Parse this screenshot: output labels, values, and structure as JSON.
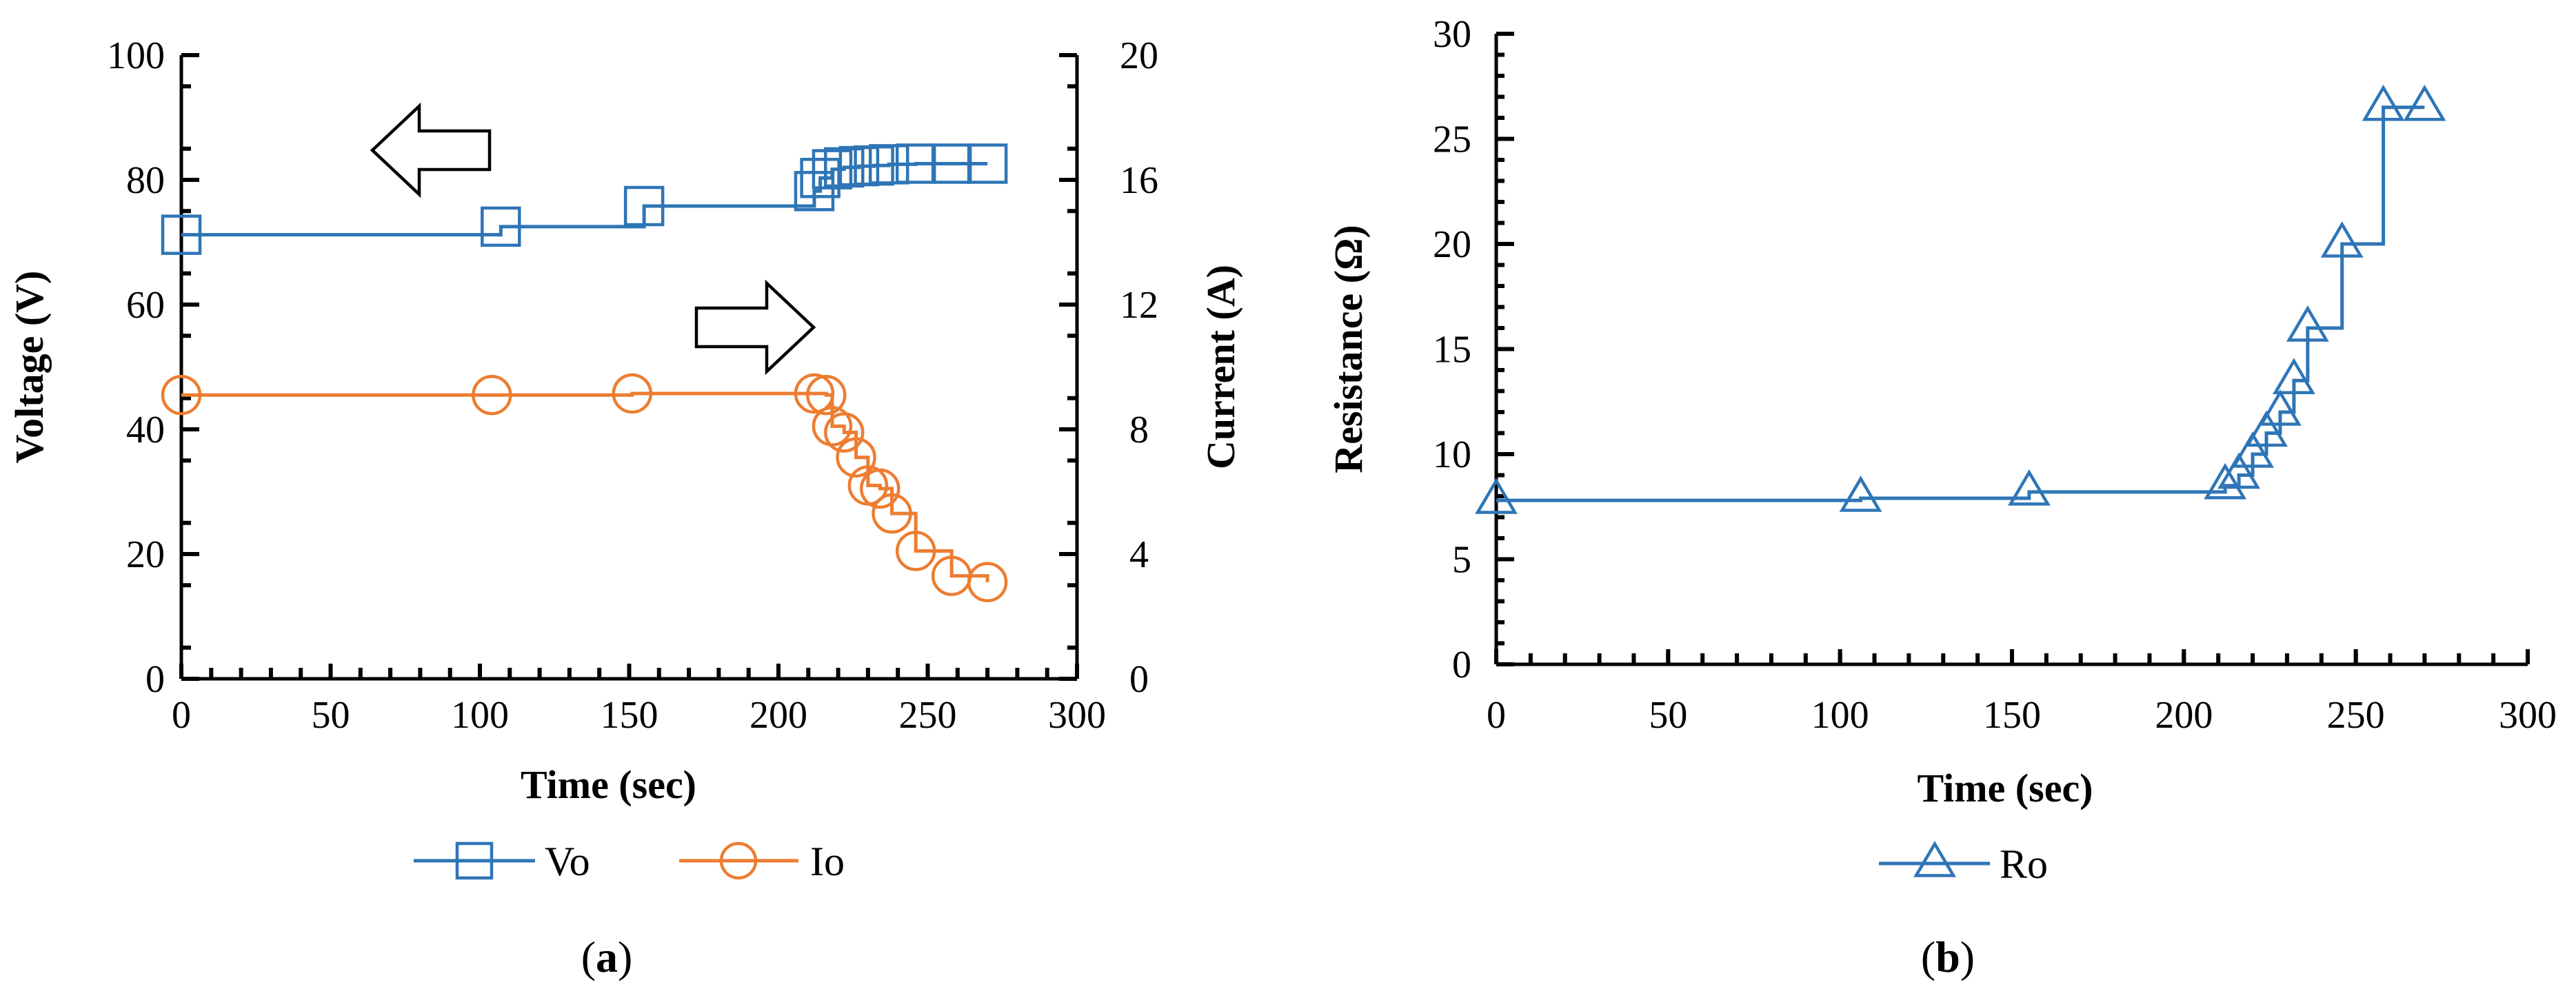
{
  "colors": {
    "vo": "#2E75B6",
    "io": "#ED7D31",
    "ro": "#2E75B6",
    "axis": "#000000"
  },
  "panels": {
    "a_label": "a",
    "b_label": "b"
  },
  "chart_data": [
    {
      "id": "a",
      "type": "line",
      "panel": "(a)",
      "xlabel": "Time (sec)",
      "ylabel_left": "Voltage (V)",
      "ylabel_right": "Current (A)",
      "xlim": [
        0,
        300
      ],
      "ylim_left": [
        0,
        100
      ],
      "ylim_right": [
        0,
        20
      ],
      "xticks": [
        0,
        50,
        100,
        150,
        200,
        250,
        300
      ],
      "yticks_left": [
        0,
        20,
        40,
        60,
        80,
        100
      ],
      "yticks_right": [
        0,
        4,
        8,
        12,
        16,
        20
      ],
      "annotations": [
        "left arrow pointing to voltage axis",
        "right arrow pointing to current axis"
      ],
      "step": true,
      "series": [
        {
          "name": "Vo",
          "axis": "left",
          "marker": "square",
          "x": [
            0,
            107,
            155,
            212,
            214,
            218,
            222,
            227,
            232,
            237,
            246,
            258,
            270
          ],
          "y": [
            71.2,
            72.5,
            75.8,
            78.2,
            80.3,
            81.7,
            82.0,
            82.2,
            82.3,
            82.5,
            82.6,
            82.6,
            82.6
          ]
        },
        {
          "name": "Io",
          "axis": "right",
          "marker": "circle",
          "x": [
            0,
            104,
            151,
            212,
            216,
            218,
            222,
            226,
            230,
            234,
            238,
            246,
            258,
            270
          ],
          "y": [
            9.1,
            9.1,
            9.15,
            9.15,
            9.1,
            8.1,
            7.9,
            7.1,
            6.2,
            6.1,
            5.3,
            4.1,
            3.3,
            3.1
          ]
        }
      ],
      "legend": [
        "Vo",
        "Io"
      ]
    },
    {
      "id": "b",
      "type": "line",
      "panel": "(b)",
      "xlabel": "Time (sec)",
      "ylabel": "Resistance (Ω)",
      "xlim": [
        0,
        300
      ],
      "ylim": [
        0,
        30
      ],
      "xticks": [
        0,
        50,
        100,
        150,
        200,
        250,
        300
      ],
      "yticks": [
        0,
        5,
        10,
        15,
        20,
        25,
        30
      ],
      "step": true,
      "series": [
        {
          "name": "Ro",
          "marker": "triangle",
          "x": [
            0,
            106,
            155,
            212,
            216,
            220,
            224,
            228,
            232,
            236,
            246,
            258,
            270
          ],
          "y": [
            7.8,
            7.9,
            8.2,
            8.5,
            9.0,
            10.0,
            11.0,
            12.0,
            13.5,
            16.0,
            20.0,
            26.5,
            26.5
          ]
        }
      ],
      "legend": [
        "Ro"
      ]
    }
  ]
}
